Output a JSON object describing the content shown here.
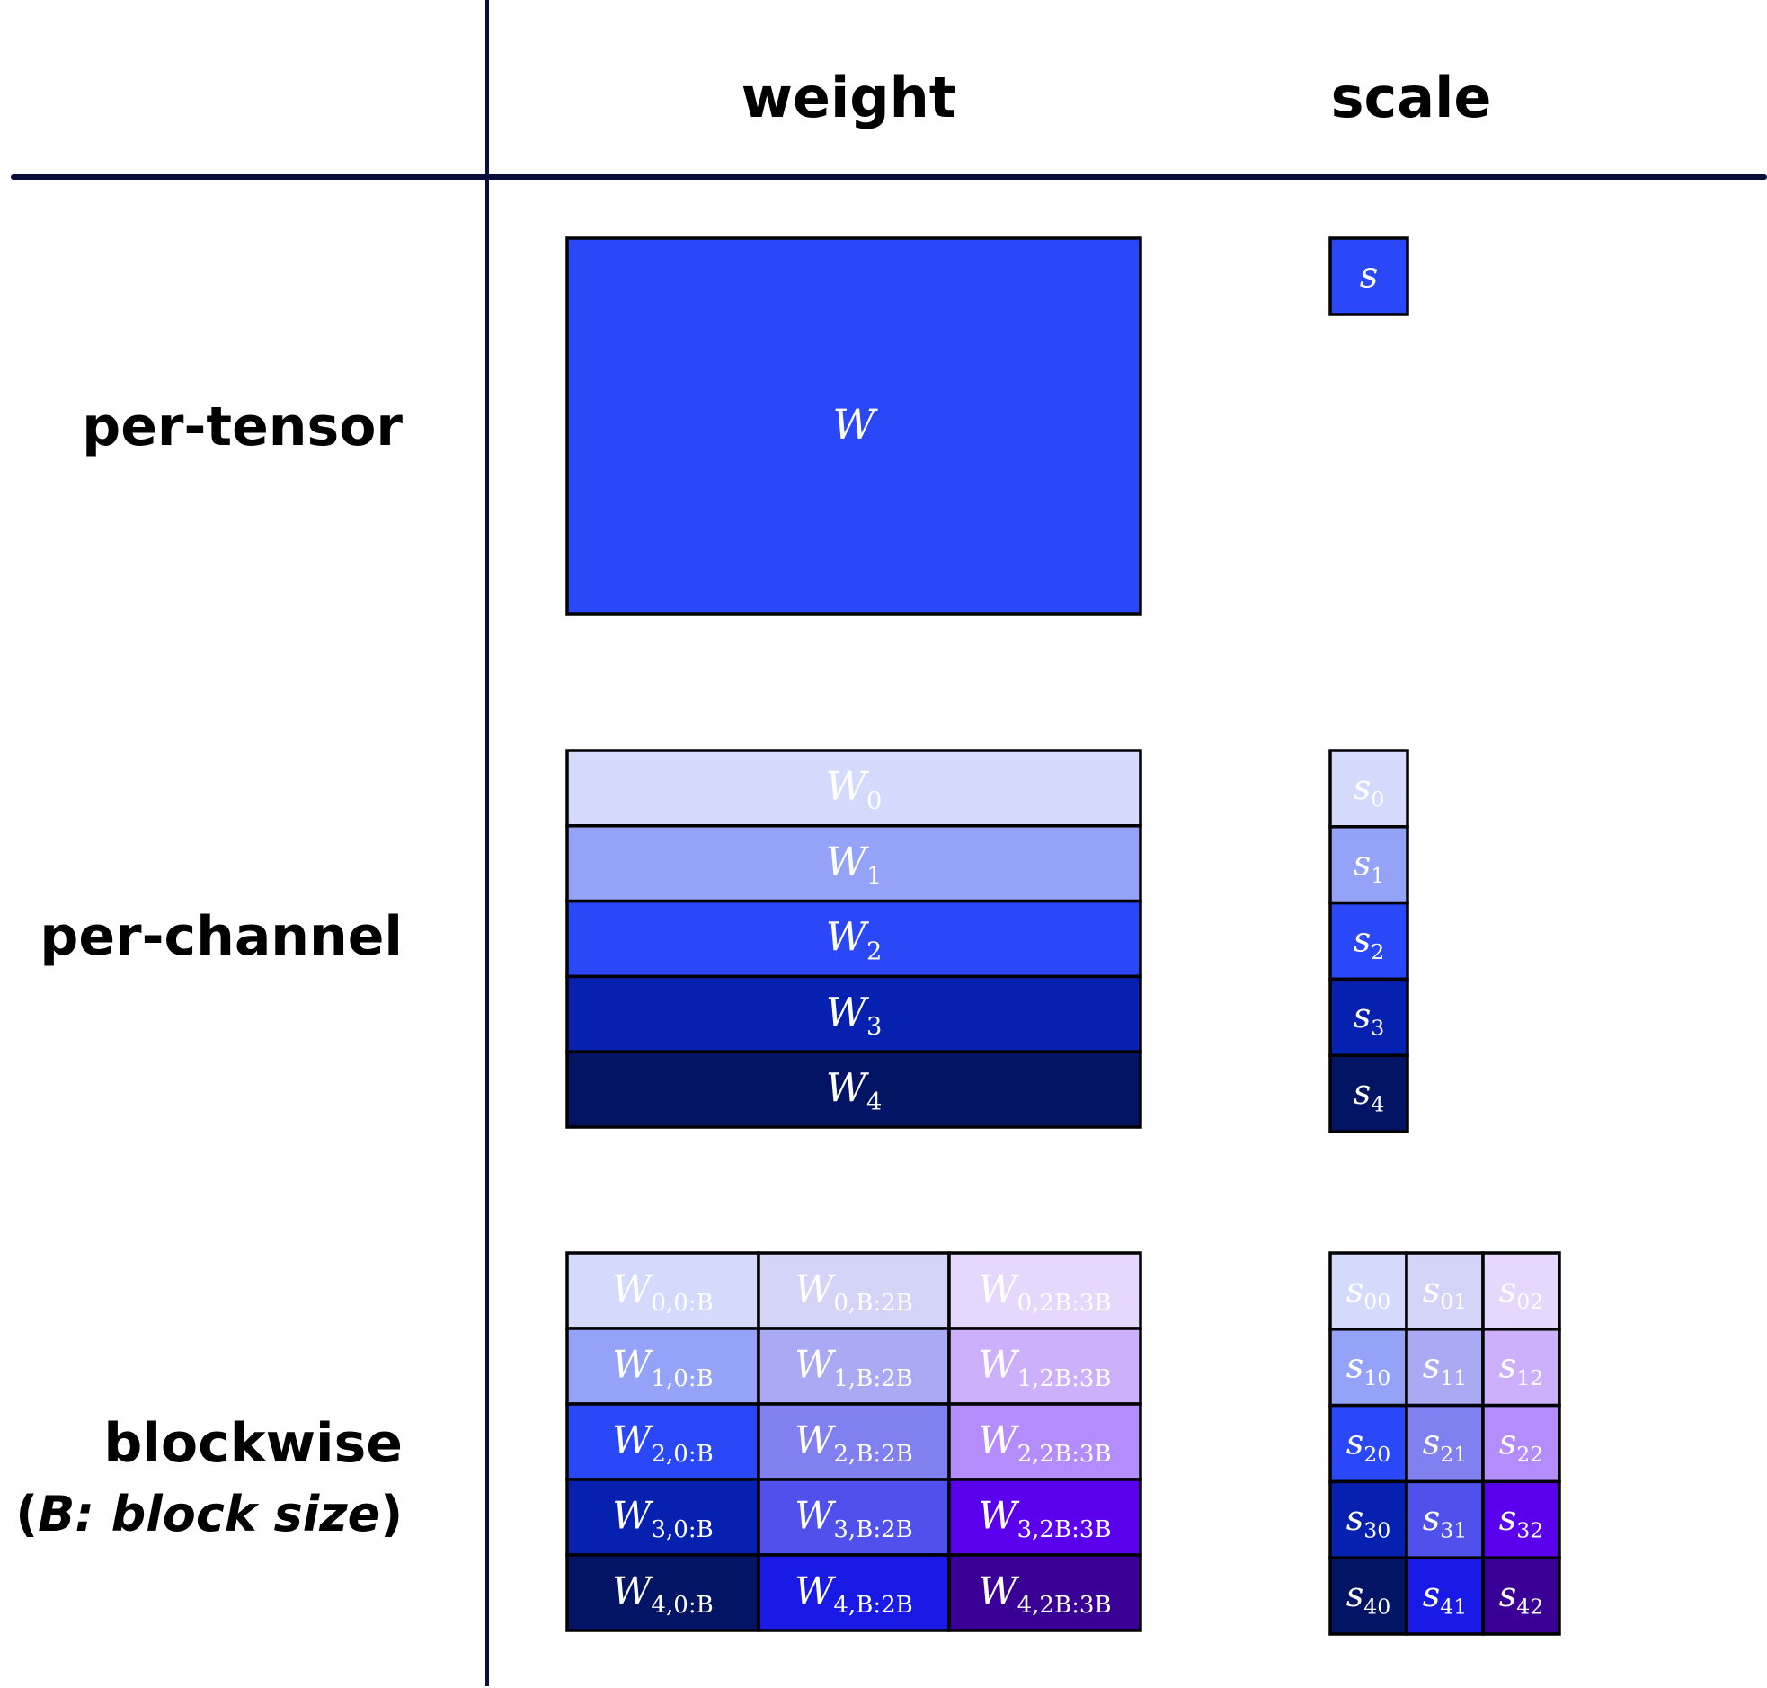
{
  "headers": {
    "weight": "weight",
    "scale": "scale"
  },
  "rows": {
    "per_tensor": "per-tensor",
    "per_channel": "per-channel",
    "blockwise": "blockwise",
    "blockwise_note_open": "(",
    "blockwise_note_italic": "B: block size",
    "blockwise_note_close": ")"
  },
  "per_tensor": {
    "weight": {
      "base": "W",
      "sub": "",
      "color": "#2a48f8"
    },
    "scale": {
      "base": "s",
      "sub": "",
      "color": "#2a48f8"
    }
  },
  "per_channel": {
    "weights": [
      {
        "base": "W",
        "sub": "0",
        "color": "#d4dafc"
      },
      {
        "base": "W",
        "sub": "1",
        "color": "#94a3f8"
      },
      {
        "base": "W",
        "sub": "2",
        "color": "#2a48f8"
      },
      {
        "base": "W",
        "sub": "3",
        "color": "#0620b0"
      },
      {
        "base": "W",
        "sub": "4",
        "color": "#041464"
      }
    ],
    "scales": [
      {
        "base": "s",
        "sub": "0",
        "color": "#d4dafc"
      },
      {
        "base": "s",
        "sub": "1",
        "color": "#94a3f8"
      },
      {
        "base": "s",
        "sub": "2",
        "color": "#2a48f8"
      },
      {
        "base": "s",
        "sub": "3",
        "color": "#0620b0"
      },
      {
        "base": "s",
        "sub": "4",
        "color": "#041464"
      }
    ]
  },
  "blockwise": {
    "colors": [
      [
        "#d4dafc",
        "#d4d4f8",
        "#e6d8fc"
      ],
      [
        "#94a3f8",
        "#aaaaf4",
        "#ccb0fc"
      ],
      [
        "#2a48f8",
        "#8080f0",
        "#b48cfc"
      ],
      [
        "#0620b0",
        "#5050ec",
        "#5a00ec"
      ],
      [
        "#041464",
        "#1a1ae6",
        "#3a0096"
      ]
    ],
    "weights": [
      [
        {
          "base": "W",
          "sub": "0,0:B"
        },
        {
          "base": "W",
          "sub": "0,B:2B"
        },
        {
          "base": "W",
          "sub": "0,2B:3B"
        }
      ],
      [
        {
          "base": "W",
          "sub": "1,0:B"
        },
        {
          "base": "W",
          "sub": "1,B:2B"
        },
        {
          "base": "W",
          "sub": "1,2B:3B"
        }
      ],
      [
        {
          "base": "W",
          "sub": "2,0:B"
        },
        {
          "base": "W",
          "sub": "2,B:2B"
        },
        {
          "base": "W",
          "sub": "2,2B:3B"
        }
      ],
      [
        {
          "base": "W",
          "sub": "3,0:B"
        },
        {
          "base": "W",
          "sub": "3,B:2B"
        },
        {
          "base": "W",
          "sub": "3,2B:3B"
        }
      ],
      [
        {
          "base": "W",
          "sub": "4,0:B"
        },
        {
          "base": "W",
          "sub": "4,B:2B"
        },
        {
          "base": "W",
          "sub": "4,2B:3B"
        }
      ]
    ],
    "scales": [
      [
        {
          "base": "s",
          "sub": "00"
        },
        {
          "base": "s",
          "sub": "01"
        },
        {
          "base": "s",
          "sub": "02"
        }
      ],
      [
        {
          "base": "s",
          "sub": "10"
        },
        {
          "base": "s",
          "sub": "11"
        },
        {
          "base": "s",
          "sub": "12"
        }
      ],
      [
        {
          "base": "s",
          "sub": "20"
        },
        {
          "base": "s",
          "sub": "21"
        },
        {
          "base": "s",
          "sub": "22"
        }
      ],
      [
        {
          "base": "s",
          "sub": "30"
        },
        {
          "base": "s",
          "sub": "31"
        },
        {
          "base": "s",
          "sub": "32"
        }
      ],
      [
        {
          "base": "s",
          "sub": "40"
        },
        {
          "base": "s",
          "sub": "41"
        },
        {
          "base": "s",
          "sub": "42"
        }
      ]
    ]
  },
  "colors": {
    "grid_line": "#0a0f3c",
    "cell_border": "#000000"
  }
}
